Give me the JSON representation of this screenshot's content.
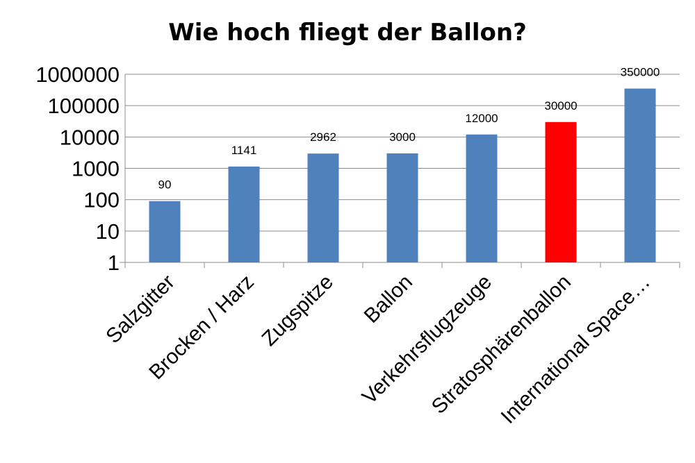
{
  "chart_data": {
    "type": "bar",
    "title": "Wie hoch fliegt der Ballon?",
    "xlabel": "",
    "ylabel": "",
    "yscale": "log",
    "ylim": [
      1,
      1000000
    ],
    "yticks": [
      "1",
      "10",
      "100",
      "1000",
      "10000",
      "100000",
      "1000000"
    ],
    "grid": true,
    "legend": "none",
    "categories": [
      "Salzgitter",
      "Brocken / Harz",
      "Zugspitze",
      "Ballon",
      "Verkehrsflugzeuge",
      "Stratosphärenballon",
      "International Space…"
    ],
    "values": [
      90,
      1141,
      2962,
      3000,
      12000,
      30000,
      350000
    ],
    "data_labels": [
      "90",
      "1141",
      "2962",
      "3000",
      "12000",
      "30000",
      "350000"
    ],
    "colors": [
      "#4f81bd",
      "#4f81bd",
      "#4f81bd",
      "#4f81bd",
      "#4f81bd",
      "#ff0000",
      "#4f81bd"
    ]
  }
}
